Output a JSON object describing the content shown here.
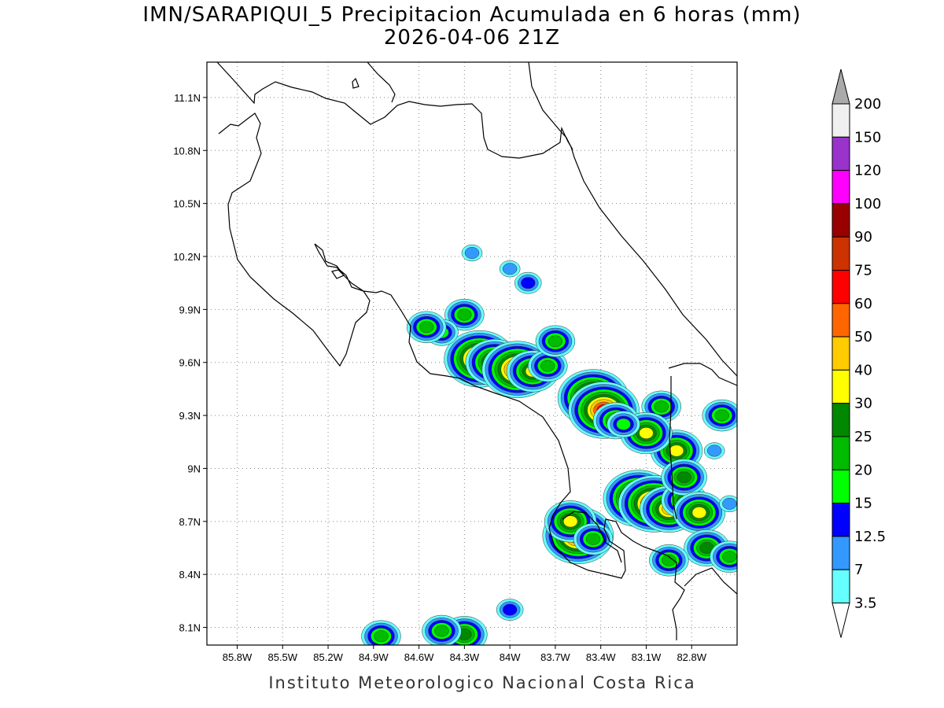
{
  "title": {
    "line1": "IMN/SARAPIQUI_5 Precipitacion Acumulada en 6 horas (mm)",
    "line2": "2026-04-06 21Z"
  },
  "footer": "Instituto Meteorologico Nacional Costa Rica",
  "map": {
    "lon_range": [
      -86.0,
      -82.5
    ],
    "lat_range": [
      8.0,
      11.3
    ],
    "lon_ticks": [
      {
        "value": -85.8,
        "label": "85.8W"
      },
      {
        "value": -85.5,
        "label": "85.5W"
      },
      {
        "value": -85.2,
        "label": "85.2W"
      },
      {
        "value": -84.9,
        "label": "84.9W"
      },
      {
        "value": -84.6,
        "label": "84.6W"
      },
      {
        "value": -84.3,
        "label": "84.3W"
      },
      {
        "value": -84.0,
        "label": "84W"
      },
      {
        "value": -83.7,
        "label": "83.7W"
      },
      {
        "value": -83.4,
        "label": "83.4W"
      },
      {
        "value": -83.1,
        "label": "83.1W"
      },
      {
        "value": -82.8,
        "label": "82.8W"
      }
    ],
    "lat_ticks": [
      {
        "value": 11.1,
        "label": "11.1N"
      },
      {
        "value": 10.8,
        "label": "10.8N"
      },
      {
        "value": 10.5,
        "label": "10.5N"
      },
      {
        "value": 10.2,
        "label": "10.2N"
      },
      {
        "value": 9.9,
        "label": "9.9N"
      },
      {
        "value": 9.6,
        "label": "9.6N"
      },
      {
        "value": 9.3,
        "label": "9.3N"
      },
      {
        "value": 9.0,
        "label": "9N"
      },
      {
        "value": 8.7,
        "label": "8.7N"
      },
      {
        "value": 8.4,
        "label": "8.4N"
      },
      {
        "value": 8.1,
        "label": "8.1N"
      }
    ],
    "grid": "dotted"
  },
  "colorbar": {
    "levels": [
      {
        "label": "200",
        "color": "#aaaaaa"
      },
      {
        "label": "150",
        "color": "#f0f0f0"
      },
      {
        "label": "120",
        "color": "#9933cc"
      },
      {
        "label": "100",
        "color": "#ff00ff"
      },
      {
        "label": "90",
        "color": "#990000"
      },
      {
        "label": "75",
        "color": "#cc3300"
      },
      {
        "label": "60",
        "color": "#ff0000"
      },
      {
        "label": "50",
        "color": "#ff6600"
      },
      {
        "label": "40",
        "color": "#ffcc00"
      },
      {
        "label": "30",
        "color": "#ffff00"
      },
      {
        "label": "25",
        "color": "#008800"
      },
      {
        "label": "20",
        "color": "#00bb00"
      },
      {
        "label": "15",
        "color": "#00ff00"
      },
      {
        "label": "12.5",
        "color": "#0000ff"
      },
      {
        "label": "7",
        "color": "#3399ff"
      },
      {
        "label": "3.5",
        "color": "#66ffff"
      }
    ],
    "bottom_arrow_color": "#ffffff"
  },
  "precip_cells": [
    {
      "lon": -84.2,
      "lat": 9.62,
      "value": 60
    },
    {
      "lon": -84.1,
      "lat": 9.6,
      "value": 40
    },
    {
      "lon": -83.95,
      "lat": 9.56,
      "value": 60
    },
    {
      "lon": -83.85,
      "lat": 9.55,
      "value": 30
    },
    {
      "lon": -83.75,
      "lat": 9.58,
      "value": 20
    },
    {
      "lon": -83.45,
      "lat": 9.4,
      "value": 60
    },
    {
      "lon": -83.38,
      "lat": 9.33,
      "value": 60
    },
    {
      "lon": -83.3,
      "lat": 9.27,
      "value": 25
    },
    {
      "lon": -83.15,
      "lat": 8.83,
      "value": 60
    },
    {
      "lon": -83.05,
      "lat": 8.8,
      "value": 60
    },
    {
      "lon": -82.95,
      "lat": 8.77,
      "value": 40
    },
    {
      "lon": -82.85,
      "lat": 8.82,
      "value": 25
    },
    {
      "lon": -82.9,
      "lat": 9.1,
      "value": 30
    },
    {
      "lon": -82.85,
      "lat": 8.95,
      "value": 25
    },
    {
      "lon": -82.75,
      "lat": 8.75,
      "value": 30
    },
    {
      "lon": -82.7,
      "lat": 8.55,
      "value": 25
    },
    {
      "lon": -83.55,
      "lat": 8.62,
      "value": 60
    },
    {
      "lon": -83.6,
      "lat": 8.7,
      "value": 30
    },
    {
      "lon": -83.45,
      "lat": 8.6,
      "value": 20
    },
    {
      "lon": -82.6,
      "lat": 9.3,
      "value": 20
    },
    {
      "lon": -83.0,
      "lat": 9.35,
      "value": 20
    },
    {
      "lon": -83.1,
      "lat": 9.2,
      "value": 30
    },
    {
      "lon": -83.25,
      "lat": 9.25,
      "value": 15
    },
    {
      "lon": -84.3,
      "lat": 9.87,
      "value": 20
    },
    {
      "lon": -84.45,
      "lat": 9.77,
      "value": 15
    },
    {
      "lon": -84.55,
      "lat": 9.8,
      "value": 20
    },
    {
      "lon": -83.7,
      "lat": 9.72,
      "value": 20
    },
    {
      "lon": -83.88,
      "lat": 10.05,
      "value": 12.5
    },
    {
      "lon": -84.25,
      "lat": 10.22,
      "value": 7
    },
    {
      "lon": -84.0,
      "lat": 10.13,
      "value": 7
    },
    {
      "lon": -82.55,
      "lat": 8.5,
      "value": 20
    },
    {
      "lon": -82.95,
      "lat": 8.48,
      "value": 20
    },
    {
      "lon": -84.3,
      "lat": 8.06,
      "value": 25
    },
    {
      "lon": -84.45,
      "lat": 8.08,
      "value": 20
    },
    {
      "lon": -84.85,
      "lat": 8.05,
      "value": 20
    },
    {
      "lon": -84.0,
      "lat": 8.2,
      "value": 12.5
    },
    {
      "lon": -82.65,
      "lat": 9.1,
      "value": 7
    },
    {
      "lon": -82.55,
      "lat": 8.8,
      "value": 7
    }
  ]
}
